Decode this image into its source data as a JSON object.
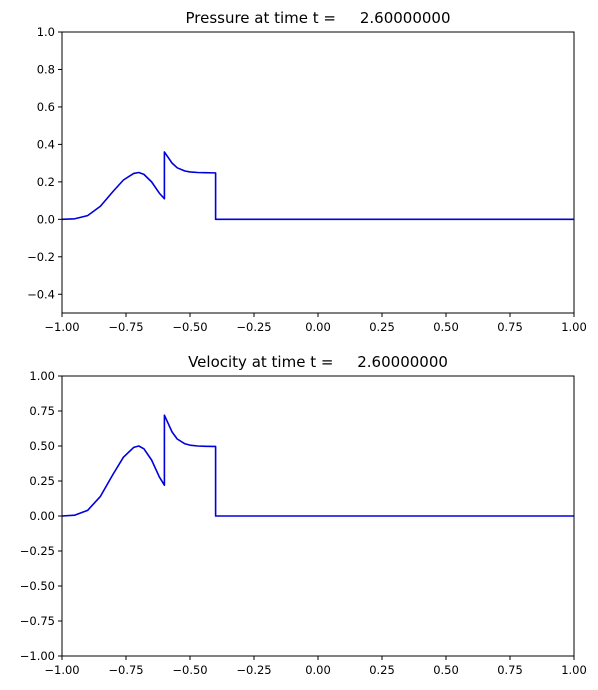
{
  "chart_data": [
    {
      "type": "line",
      "title": "Pressure at time t =     2.60000000",
      "xlabel": "",
      "ylabel": "",
      "xlim": [
        -1.0,
        1.0
      ],
      "ylim": [
        -0.5,
        1.0
      ],
      "xticks": [
        -1.0,
        -0.75,
        -0.5,
        -0.25,
        0.0,
        0.25,
        0.5,
        0.75,
        1.0
      ],
      "xtick_labels": [
        "−1.00",
        "−0.75",
        "−0.50",
        "−0.25",
        "0.00",
        "0.25",
        "0.50",
        "0.75",
        "1.00"
      ],
      "yticks": [
        -0.4,
        -0.2,
        0.0,
        0.2,
        0.4,
        0.6,
        0.8,
        1.0
      ],
      "ytick_labels": [
        "−0.4",
        "−0.2",
        "0.0",
        "0.2",
        "0.4",
        "0.6",
        "0.8",
        "1.0"
      ],
      "grid": false,
      "series": [
        {
          "color": "#0000dd",
          "x": [
            -1.0,
            -0.95,
            -0.9,
            -0.85,
            -0.8,
            -0.76,
            -0.72,
            -0.7,
            -0.68,
            -0.65,
            -0.62,
            -0.6,
            -0.6,
            -0.59,
            -0.57,
            -0.55,
            -0.52,
            -0.5,
            -0.47,
            -0.44,
            -0.41,
            -0.4,
            -0.4,
            -0.3,
            0.0,
            0.5,
            1.0
          ],
          "y": [
            0.0,
            0.003,
            0.02,
            0.07,
            0.15,
            0.21,
            0.245,
            0.25,
            0.24,
            0.2,
            0.14,
            0.11,
            0.36,
            0.34,
            0.3,
            0.275,
            0.258,
            0.253,
            0.25,
            0.249,
            0.248,
            0.248,
            0.0,
            0.0,
            0.0,
            0.0,
            0.0
          ]
        }
      ]
    },
    {
      "type": "line",
      "title": "Velocity at time t =     2.60000000",
      "xlabel": "",
      "ylabel": "",
      "xlim": [
        -1.0,
        1.0
      ],
      "ylim": [
        -1.0,
        1.0
      ],
      "xticks": [
        -1.0,
        -0.75,
        -0.5,
        -0.25,
        0.0,
        0.25,
        0.5,
        0.75,
        1.0
      ],
      "xtick_labels": [
        "−1.00",
        "−0.75",
        "−0.50",
        "−0.25",
        "0.00",
        "0.25",
        "0.50",
        "0.75",
        "1.00"
      ],
      "yticks": [
        -1.0,
        -0.75,
        -0.5,
        -0.25,
        0.0,
        0.25,
        0.5,
        0.75,
        1.0
      ],
      "ytick_labels": [
        "−1.00",
        "−0.75",
        "−0.50",
        "−0.25",
        "0.00",
        "0.25",
        "0.50",
        "0.75",
        "1.00"
      ],
      "grid": false,
      "series": [
        {
          "color": "#0000dd",
          "x": [
            -1.0,
            -0.95,
            -0.9,
            -0.85,
            -0.8,
            -0.76,
            -0.72,
            -0.7,
            -0.68,
            -0.65,
            -0.62,
            -0.6,
            -0.6,
            -0.59,
            -0.57,
            -0.55,
            -0.52,
            -0.5,
            -0.47,
            -0.44,
            -0.41,
            -0.4,
            -0.4,
            -0.3,
            0.0,
            0.5,
            1.0
          ],
          "y": [
            0.0,
            0.006,
            0.04,
            0.14,
            0.3,
            0.42,
            0.49,
            0.5,
            0.48,
            0.4,
            0.28,
            0.22,
            0.72,
            0.68,
            0.6,
            0.55,
            0.516,
            0.506,
            0.5,
            0.498,
            0.497,
            0.497,
            0.0,
            0.0,
            0.0,
            0.0,
            0.0
          ]
        }
      ]
    }
  ]
}
